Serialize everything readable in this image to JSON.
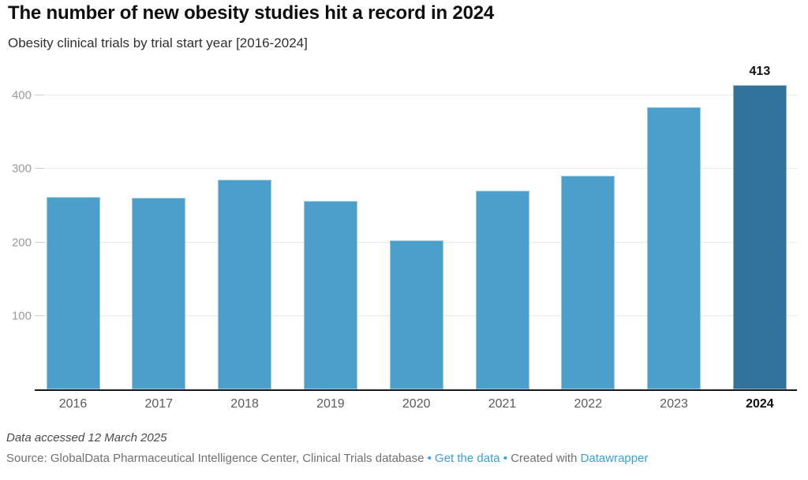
{
  "chart_data": {
    "type": "bar",
    "title": "The number of new obesity studies hit a record in 2024",
    "subtitle": "Obesity clinical trials by trial start year [2016-2024]",
    "categories": [
      "2016",
      "2017",
      "2018",
      "2019",
      "2020",
      "2021",
      "2022",
      "2023",
      "2024"
    ],
    "values": [
      261,
      260,
      284,
      255,
      202,
      269,
      290,
      383,
      413
    ],
    "xlabel": "",
    "ylabel": "",
    "ylim": [
      0,
      440
    ],
    "y_ticks": [
      100,
      200,
      300,
      400
    ],
    "grid": "horizontal",
    "legend": "none",
    "highlight_category": "2024",
    "value_label": {
      "category": "2024",
      "text": "413"
    },
    "colors": {
      "bar": "#4C9ECB",
      "highlight": "#32739C",
      "axis": "#18181b",
      "gridline": "#e9e9e9",
      "y_tick_label": "#9a9a9a",
      "x_tick_label": "#5b5b5b",
      "x_tick_label_highlight": "#111111"
    }
  },
  "footer": {
    "note": "Data accessed 12 March 2025",
    "source_parts": [
      {
        "text": "Source: GlobalData Pharmaceutical Intelligence Center, Clinical Trials database",
        "style": "text",
        "name": "source-text"
      },
      {
        "text": " • ",
        "style": "sep",
        "name": "separator-dot"
      },
      {
        "text": "Get the data",
        "style": "link",
        "name": "get-the-data-link"
      },
      {
        "text": " • ",
        "style": "sep",
        "name": "separator-dot"
      },
      {
        "text": "Created with ",
        "style": "text",
        "name": "created-with-text"
      },
      {
        "text": "Datawrapper",
        "style": "link",
        "name": "datawrapper-link"
      }
    ],
    "link_color": "#3BA0D8"
  }
}
